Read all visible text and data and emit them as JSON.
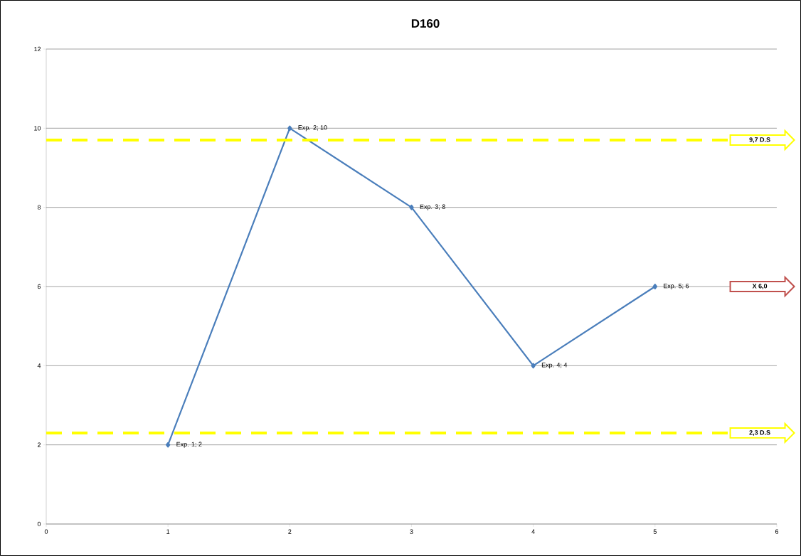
{
  "chart_data": {
    "type": "line",
    "title": "D160",
    "x": [
      1,
      2,
      3,
      4,
      5
    ],
    "series": [
      {
        "color": "#4a7ebb",
        "values": [
          2,
          10,
          8,
          4,
          6
        ],
        "value_labels": [
          "Exp. 1; 2",
          "Exp. 2; 10",
          "Exp. 3; 8",
          "Exp. 4; 4",
          "Exp. 5; 6"
        ]
      }
    ],
    "xlim": [
      0,
      6
    ],
    "xticks": [
      0,
      1,
      2,
      3,
      4,
      5,
      6
    ],
    "ylim": [
      0,
      12
    ],
    "yticks": [
      0,
      2,
      4,
      6,
      8,
      10,
      12
    ],
    "grid": "y",
    "marker": "diamond",
    "line_style": "solid",
    "ref_lines": [
      {
        "axis": "y",
        "value": 9.7,
        "label": "9,7  D.S",
        "color": "#ffff00",
        "line_style": "dashed"
      },
      {
        "axis": "y",
        "value": 2.3,
        "label": "2,3  D.S",
        "color": "#ffff00",
        "line_style": "dashed"
      }
    ],
    "annotations": [
      "X 6,0"
    ]
  }
}
